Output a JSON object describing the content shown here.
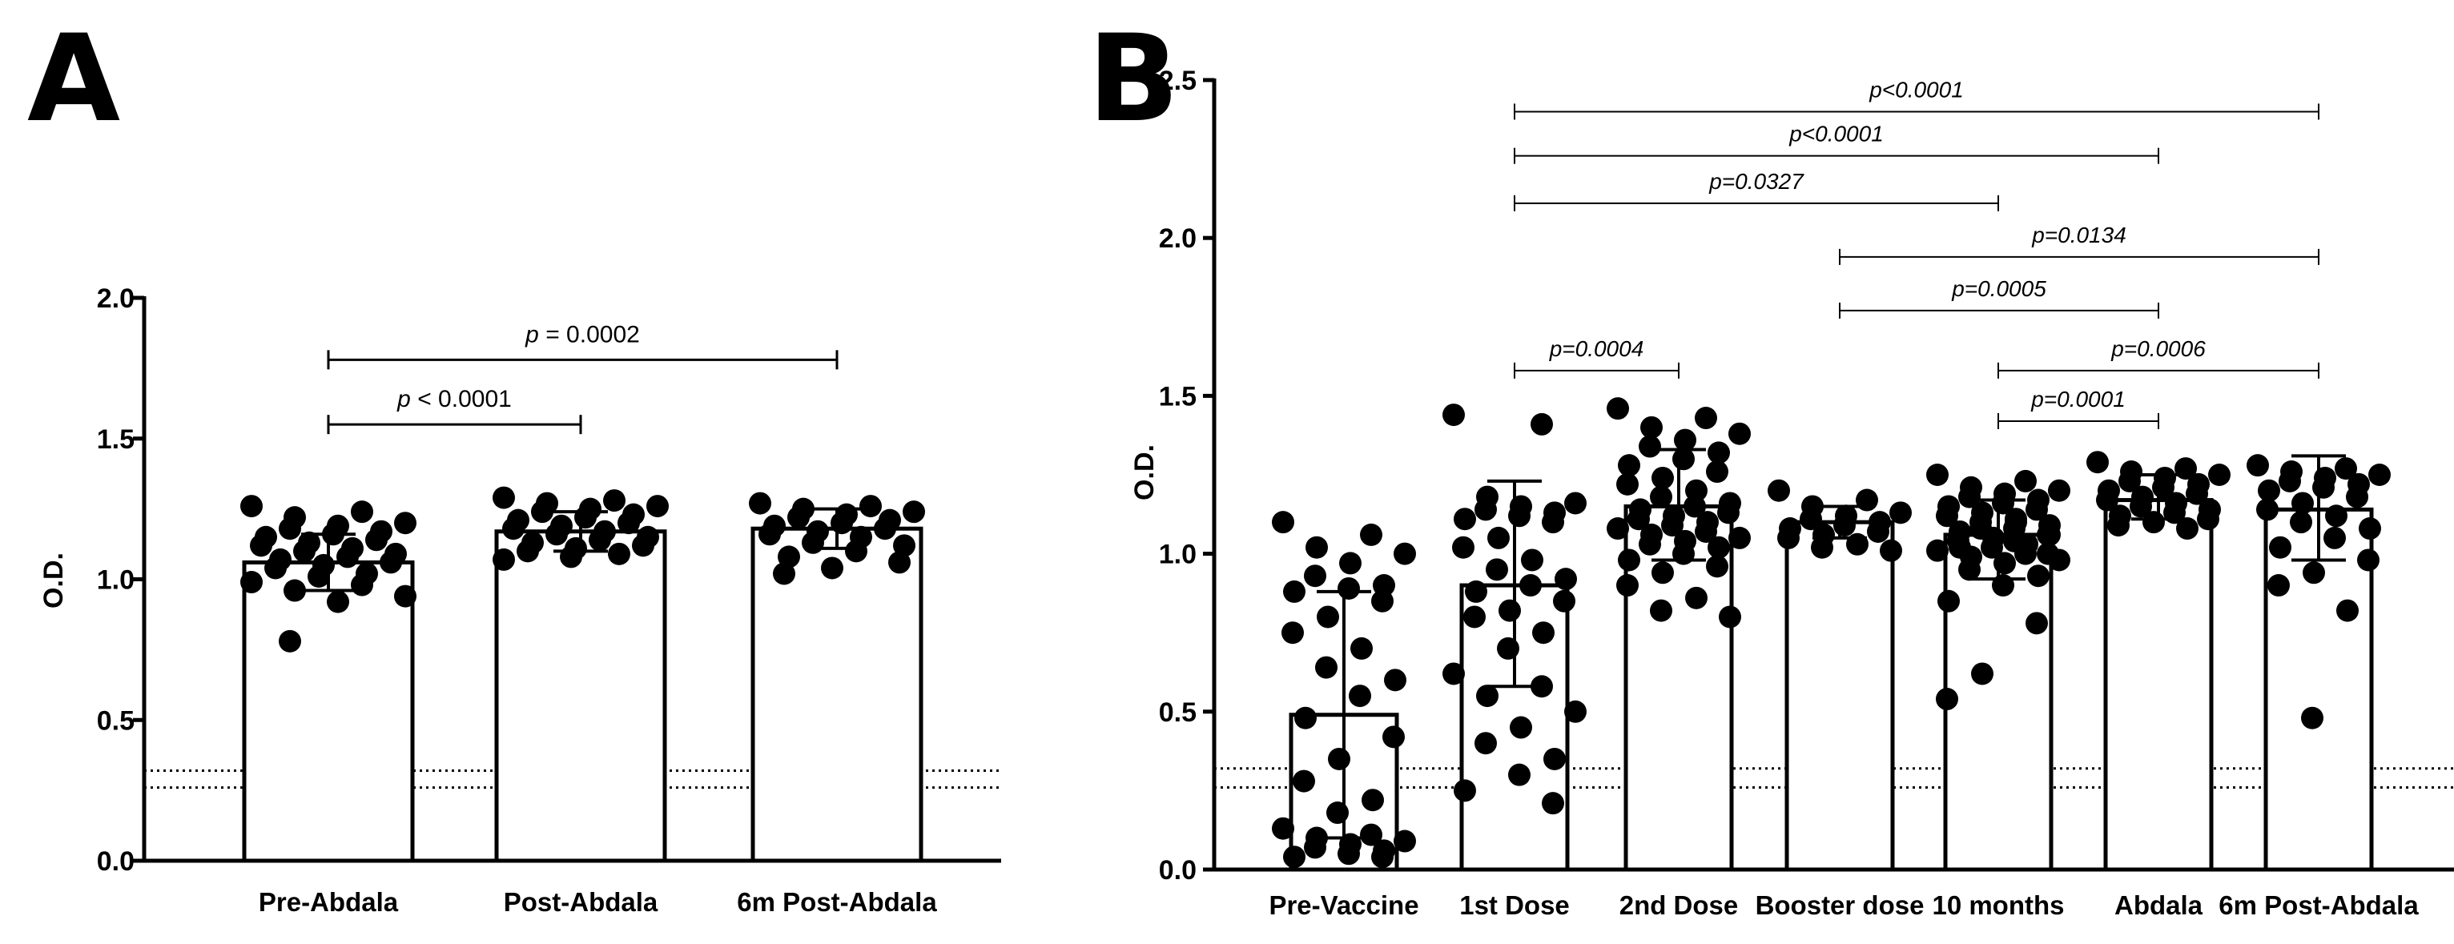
{
  "panels": {
    "a": {
      "letter": "A"
    },
    "b": {
      "letter": "B"
    }
  },
  "chart_data": [
    {
      "type": "bar",
      "panel": "A",
      "ylabel": "O.D.",
      "ylim": [
        0,
        2.0
      ],
      "yticks": [
        "0.0",
        "0.5",
        "1.0",
        "1.5",
        "2.0"
      ],
      "categories": [
        "Pre-Abdala",
        "Post-Abdala",
        "6m Post-Abdala"
      ],
      "values": [
        1.06,
        1.17,
        1.18
      ],
      "error_low": [
        0.96,
        1.1,
        1.11
      ],
      "error_high": [
        1.16,
        1.24,
        1.25
      ],
      "cutoff_lines": [
        0.32,
        0.26
      ],
      "points": [
        [
          1.26,
          1.24,
          1.22,
          1.2,
          1.19,
          1.18,
          1.17,
          1.16,
          1.15,
          1.14,
          1.13,
          1.12,
          1.11,
          1.1,
          1.09,
          1.08,
          1.07,
          1.06,
          1.05,
          1.04,
          1.02,
          1.01,
          0.99,
          0.98,
          0.96,
          0.94,
          0.92,
          0.78
        ],
        [
          1.29,
          1.28,
          1.27,
          1.26,
          1.25,
          1.24,
          1.23,
          1.22,
          1.21,
          1.2,
          1.19,
          1.18,
          1.17,
          1.16,
          1.15,
          1.14,
          1.13,
          1.12,
          1.11,
          1.1,
          1.09,
          1.08,
          1.07
        ],
        [
          1.27,
          1.26,
          1.25,
          1.24,
          1.23,
          1.22,
          1.21,
          1.2,
          1.19,
          1.18,
          1.17,
          1.16,
          1.15,
          1.13,
          1.12,
          1.1,
          1.08,
          1.06,
          1.04,
          1.02
        ]
      ],
      "comparisons": [
        {
          "from": 0,
          "to": 1,
          "y": 1.55,
          "label_prefix": "p",
          "label_rest": " < 0.0001"
        },
        {
          "from": 0,
          "to": 2,
          "y": 1.78,
          "label_prefix": "p",
          "label_rest": " = 0.0002"
        }
      ]
    },
    {
      "type": "bar",
      "panel": "B",
      "ylabel": "O.D.",
      "ylim": [
        0,
        2.5
      ],
      "yticks": [
        "0.0",
        "0.5",
        "1.0",
        "1.5",
        "2.0",
        "2.5"
      ],
      "categories": [
        "Pre-Vaccine",
        "1st Dose",
        "2nd Dose",
        "Booster dose",
        "10 months",
        "Abdala",
        "6m Post-Abdala"
      ],
      "values": [
        0.49,
        0.9,
        1.15,
        1.1,
        1.06,
        1.17,
        1.14
      ],
      "error_low": [
        0.1,
        0.58,
        0.98,
        1.05,
        0.92,
        1.11,
        0.98
      ],
      "error_high": [
        0.88,
        1.23,
        1.33,
        1.15,
        1.17,
        1.25,
        1.31
      ],
      "cutoff_lines": [
        0.32,
        0.26
      ],
      "points": [
        [
          1.1,
          1.06,
          1.02,
          1.0,
          0.97,
          0.93,
          0.9,
          0.89,
          0.88,
          0.85,
          0.8,
          0.75,
          0.7,
          0.64,
          0.6,
          0.55,
          0.48,
          0.42,
          0.35,
          0.28,
          0.22,
          0.18,
          0.13,
          0.11,
          0.1,
          0.09,
          0.08,
          0.07,
          0.06,
          0.05,
          0.04,
          0.04
        ],
        [
          1.44,
          1.41,
          1.18,
          1.16,
          1.15,
          1.14,
          1.13,
          1.12,
          1.11,
          1.1,
          1.05,
          1.02,
          0.98,
          0.95,
          0.92,
          0.9,
          0.88,
          0.85,
          0.82,
          0.8,
          0.75,
          0.7,
          0.62,
          0.58,
          0.55,
          0.5,
          0.45,
          0.4,
          0.35,
          0.3,
          0.25,
          0.21
        ],
        [
          1.46,
          1.43,
          1.4,
          1.38,
          1.36,
          1.34,
          1.32,
          1.3,
          1.28,
          1.26,
          1.24,
          1.22,
          1.2,
          1.18,
          1.16,
          1.15,
          1.14,
          1.13,
          1.12,
          1.11,
          1.1,
          1.09,
          1.08,
          1.07,
          1.06,
          1.05,
          1.04,
          1.03,
          1.02,
          1.0,
          0.98,
          0.96,
          0.94,
          0.9,
          0.86,
          0.82,
          0.8
        ],
        [
          1.2,
          1.17,
          1.15,
          1.13,
          1.12,
          1.11,
          1.1,
          1.09,
          1.08,
          1.07,
          1.06,
          1.05,
          1.03,
          1.02,
          1.01
        ],
        [
          1.25,
          1.23,
          1.21,
          1.2,
          1.19,
          1.18,
          1.17,
          1.16,
          1.15,
          1.14,
          1.13,
          1.12,
          1.11,
          1.1,
          1.09,
          1.08,
          1.07,
          1.06,
          1.05,
          1.04,
          1.03,
          1.02,
          1.01,
          1.0,
          0.99,
          0.98,
          0.97,
          0.95,
          0.93,
          0.9,
          0.85,
          0.78,
          0.62,
          0.54,
          1.1,
          1.08,
          1.06,
          1.04,
          1.02,
          1.0
        ],
        [
          1.29,
          1.27,
          1.26,
          1.25,
          1.24,
          1.23,
          1.22,
          1.21,
          1.2,
          1.19,
          1.18,
          1.17,
          1.16,
          1.15,
          1.14,
          1.13,
          1.12,
          1.11,
          1.1,
          1.09,
          1.08
        ],
        [
          1.28,
          1.27,
          1.26,
          1.25,
          1.24,
          1.23,
          1.22,
          1.21,
          1.2,
          1.18,
          1.16,
          1.14,
          1.12,
          1.1,
          1.08,
          1.05,
          1.02,
          0.98,
          0.94,
          0.9,
          0.82,
          0.48
        ]
      ],
      "comparisons": [
        {
          "from": 1,
          "to": 2,
          "y": 1.58,
          "label": "p=0.0004"
        },
        {
          "from": 4,
          "to": 5,
          "y": 1.42,
          "label": "p=0.0001"
        },
        {
          "from": 4,
          "to": 6,
          "y": 1.58,
          "label": "p=0.0006"
        },
        {
          "from": 3,
          "to": 5,
          "y": 1.77,
          "label": "p=0.0005"
        },
        {
          "from": 3,
          "to": 6,
          "y": 1.94,
          "label": "p=0.0134"
        },
        {
          "from": 1,
          "to": 4,
          "y": 2.11,
          "label": "p=0.0327"
        },
        {
          "from": 1,
          "to": 5,
          "y": 2.26,
          "label": "p<0.0001"
        },
        {
          "from": 1,
          "to": 6,
          "y": 2.4,
          "label": "p<0.0001"
        }
      ]
    }
  ]
}
